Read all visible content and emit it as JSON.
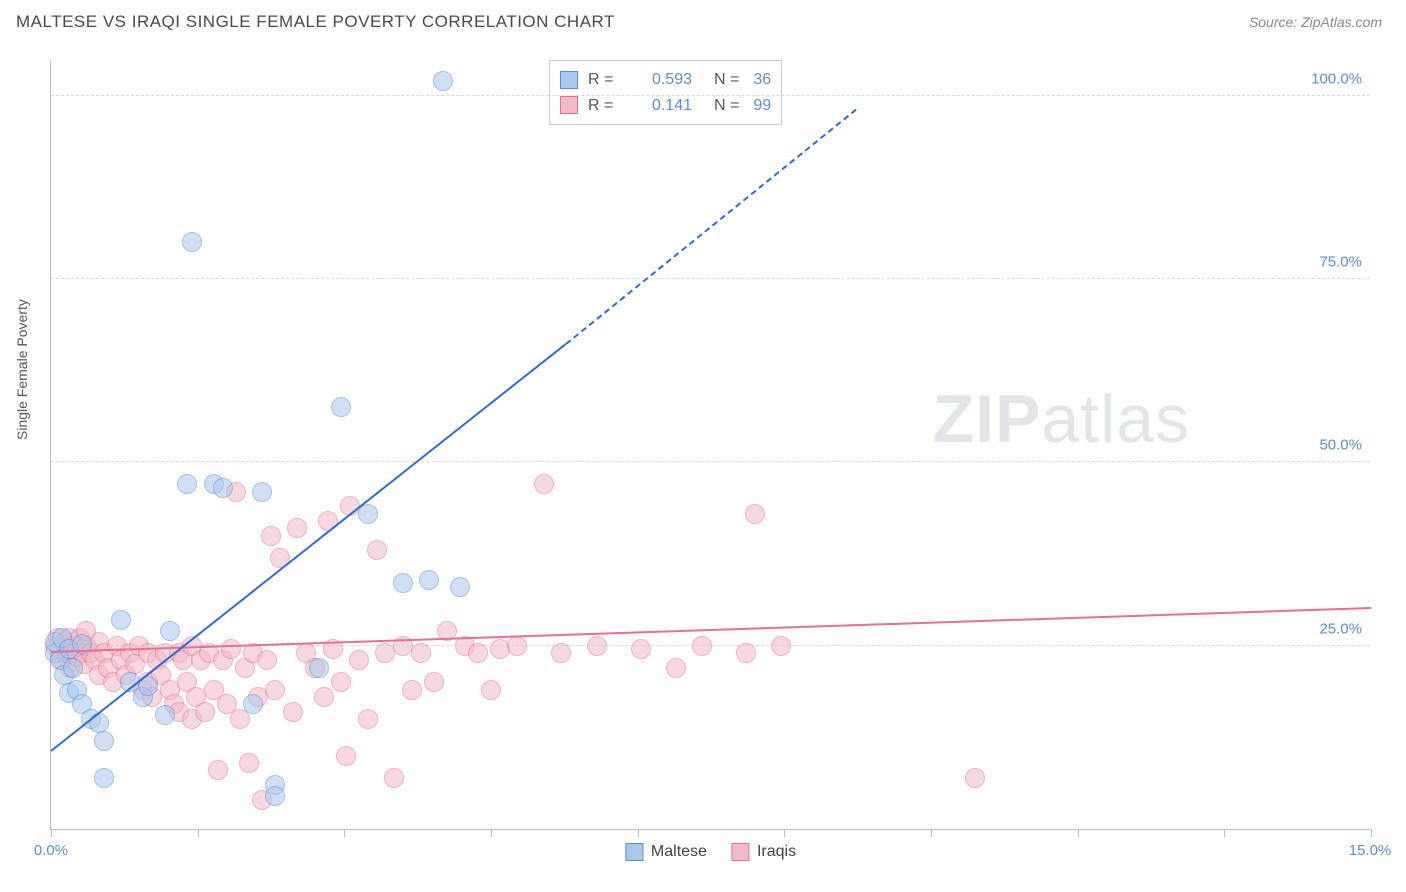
{
  "title": "MALTESE VS IRAQI SINGLE FEMALE POVERTY CORRELATION CHART",
  "source_label": "Source: ZipAtlas.com",
  "y_axis_label": "Single Female Poverty",
  "watermark": {
    "zip": "ZIP",
    "atlas": "atlas"
  },
  "chart": {
    "type": "scatter",
    "background_color": "#ffffff",
    "grid_color": "#d8d8d8",
    "axis_color": "#bbbbbb",
    "tick_label_color": "#5b8dd6",
    "xlim": [
      0,
      15
    ],
    "ylim": [
      0,
      105
    ],
    "y_ticks": [
      25,
      50,
      75,
      100
    ],
    "y_tick_labels": [
      "25.0%",
      "50.0%",
      "75.0%",
      "100.0%"
    ],
    "x_tick_positions": [
      0,
      1.67,
      3.33,
      5,
      6.67,
      8.33,
      10,
      11.67,
      13.33,
      15
    ],
    "x_min_label": "0.0%",
    "x_max_label": "15.0%",
    "point_radius": 10,
    "point_opacity": 0.55,
    "point_border_width": 1.2
  },
  "series": {
    "maltese": {
      "label": "Maltese",
      "fill_color": "#a8c8ec",
      "border_color": "#5b8dd6",
      "r_value": "0.593",
      "n_value": "36",
      "trend_color": "#2e6bd1",
      "trend_width": 2,
      "trend_start": [
        0,
        10.5
      ],
      "trend_solid_end": [
        5.85,
        66
      ],
      "trend_dash_end": [
        9.15,
        98
      ],
      "points": [
        [
          0.05,
          24
        ],
        [
          0.05,
          25.5
        ],
        [
          0.1,
          23
        ],
        [
          0.12,
          26
        ],
        [
          0.15,
          21
        ],
        [
          0.2,
          24.5
        ],
        [
          0.25,
          22
        ],
        [
          0.2,
          18.5
        ],
        [
          0.3,
          19
        ],
        [
          0.35,
          17
        ],
        [
          0.45,
          15
        ],
        [
          0.55,
          14.5
        ],
        [
          0.6,
          12
        ],
        [
          0.8,
          28.5
        ],
        [
          0.9,
          20
        ],
        [
          1.05,
          18
        ],
        [
          1.1,
          19.5
        ],
        [
          1.3,
          15.5
        ],
        [
          1.35,
          27
        ],
        [
          1.55,
          47
        ],
        [
          1.6,
          80
        ],
        [
          1.85,
          47
        ],
        [
          1.95,
          46.5
        ],
        [
          2.3,
          17
        ],
        [
          2.4,
          46
        ],
        [
          2.55,
          6
        ],
        [
          2.55,
          4.5
        ],
        [
          3.05,
          22
        ],
        [
          3.3,
          57.5
        ],
        [
          3.6,
          43
        ],
        [
          4.0,
          33.5
        ],
        [
          4.3,
          34
        ],
        [
          4.45,
          102
        ],
        [
          4.65,
          33
        ],
        [
          0.6,
          7
        ],
        [
          0.35,
          25.2
        ]
      ]
    },
    "iraqis": {
      "label": "Iraqis",
      "fill_color": "#f4b9c8",
      "border_color": "#e4718f",
      "r_value": "0.141",
      "n_value": "99",
      "trend_color": "#e4718f",
      "trend_width": 2,
      "trend_start": [
        0,
        24
      ],
      "trend_end": [
        15,
        30
      ],
      "points": [
        [
          0.05,
          25
        ],
        [
          0.08,
          26
        ],
        [
          0.1,
          24.5
        ],
        [
          0.12,
          23
        ],
        [
          0.15,
          25.5
        ],
        [
          0.18,
          24
        ],
        [
          0.2,
          26
        ],
        [
          0.22,
          22
        ],
        [
          0.25,
          25
        ],
        [
          0.28,
          24
        ],
        [
          0.3,
          23.5
        ],
        [
          0.33,
          26
        ],
        [
          0.35,
          24
        ],
        [
          0.38,
          22.5
        ],
        [
          0.4,
          25
        ],
        [
          0.45,
          24
        ],
        [
          0.5,
          23
        ],
        [
          0.55,
          25.5
        ],
        [
          0.55,
          21
        ],
        [
          0.6,
          24
        ],
        [
          0.65,
          22
        ],
        [
          0.7,
          20
        ],
        [
          0.75,
          25
        ],
        [
          0.8,
          23
        ],
        [
          0.85,
          21
        ],
        [
          0.9,
          24
        ],
        [
          0.95,
          22.5
        ],
        [
          1.0,
          25
        ],
        [
          1.05,
          19
        ],
        [
          1.1,
          24
        ],
        [
          1.1,
          20
        ],
        [
          1.15,
          18
        ],
        [
          1.2,
          23
        ],
        [
          1.25,
          21
        ],
        [
          1.3,
          24
        ],
        [
          1.35,
          19
        ],
        [
          1.4,
          17
        ],
        [
          1.45,
          24
        ],
        [
          1.45,
          16
        ],
        [
          1.5,
          23
        ],
        [
          1.55,
          20
        ],
        [
          1.6,
          25
        ],
        [
          1.6,
          15
        ],
        [
          1.65,
          18
        ],
        [
          1.7,
          23
        ],
        [
          1.75,
          16
        ],
        [
          1.8,
          24
        ],
        [
          1.85,
          19
        ],
        [
          1.9,
          8
        ],
        [
          1.95,
          23
        ],
        [
          2.0,
          17
        ],
        [
          2.05,
          24.5
        ],
        [
          2.1,
          46
        ],
        [
          2.15,
          15
        ],
        [
          2.2,
          22
        ],
        [
          2.25,
          9
        ],
        [
          2.3,
          24
        ],
        [
          2.35,
          18
        ],
        [
          2.4,
          4
        ],
        [
          2.45,
          23
        ],
        [
          2.5,
          40
        ],
        [
          2.55,
          19
        ],
        [
          2.6,
          37
        ],
        [
          2.75,
          16
        ],
        [
          2.8,
          41
        ],
        [
          2.9,
          24
        ],
        [
          3.0,
          22
        ],
        [
          3.1,
          18
        ],
        [
          3.15,
          42
        ],
        [
          3.2,
          24.5
        ],
        [
          3.3,
          20
        ],
        [
          3.35,
          10
        ],
        [
          3.4,
          44
        ],
        [
          3.5,
          23
        ],
        [
          3.6,
          15
        ],
        [
          3.7,
          38
        ],
        [
          3.8,
          24
        ],
        [
          3.9,
          7
        ],
        [
          4.0,
          25
        ],
        [
          4.1,
          19
        ],
        [
          4.2,
          24
        ],
        [
          4.35,
          20
        ],
        [
          4.5,
          27
        ],
        [
          4.7,
          25
        ],
        [
          4.85,
          24
        ],
        [
          5.0,
          19
        ],
        [
          5.1,
          24.5
        ],
        [
          5.3,
          25
        ],
        [
          5.6,
          47
        ],
        [
          5.8,
          24
        ],
        [
          6.2,
          25
        ],
        [
          6.7,
          24.5
        ],
        [
          7.1,
          22
        ],
        [
          7.4,
          25
        ],
        [
          7.9,
          24
        ],
        [
          8.0,
          43
        ],
        [
          8.3,
          25
        ],
        [
          10.5,
          7
        ],
        [
          0.4,
          27
        ]
      ]
    }
  },
  "legend_labels": {
    "r_prefix": "R =",
    "n_prefix": "N ="
  }
}
